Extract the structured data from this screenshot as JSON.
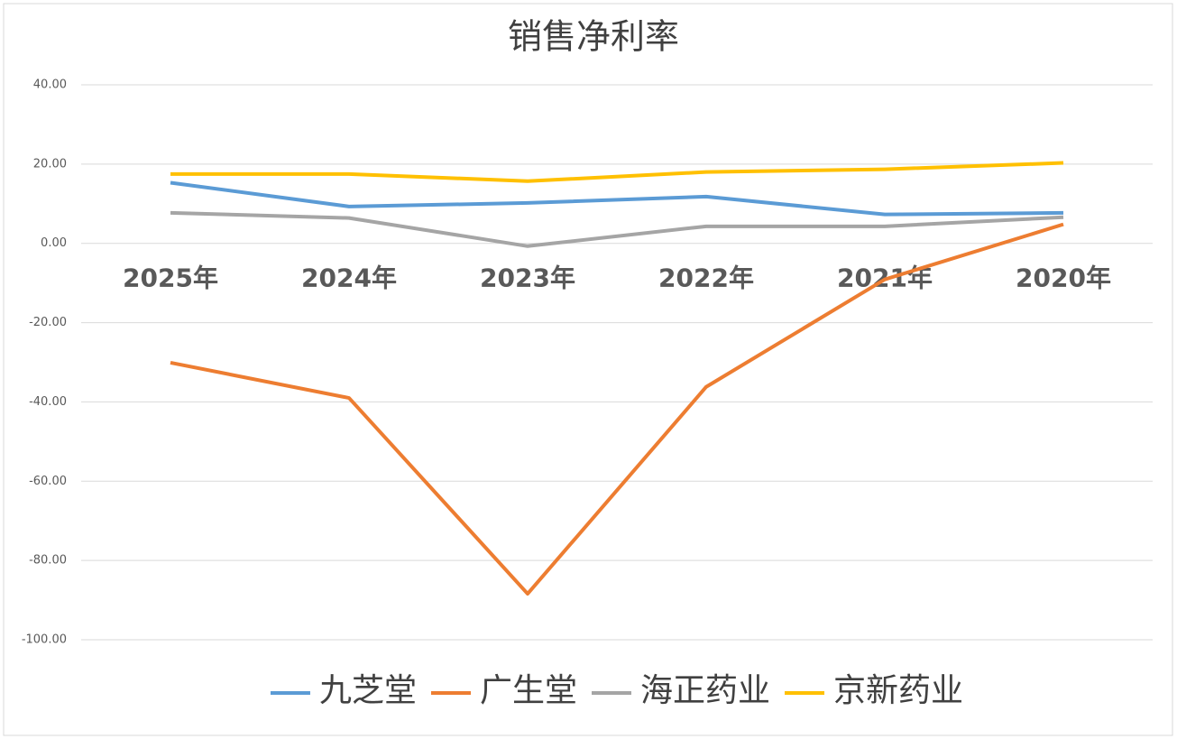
{
  "chart_data": {
    "type": "line",
    "title": "销售净利率",
    "categories": [
      "2025年",
      "2024年",
      "2023年",
      "2022年",
      "2021年",
      "2020年"
    ],
    "series": [
      {
        "name": "九芝堂",
        "color": "#5b9bd5",
        "values": [
          15.3,
          9.3,
          10.2,
          11.8,
          7.3,
          7.7
        ]
      },
      {
        "name": "广生堂",
        "color": "#ed7d31",
        "values": [
          -30.1,
          -39.0,
          -88.4,
          -36.2,
          -9.1,
          4.8
        ]
      },
      {
        "name": "海正药业",
        "color": "#a5a5a5",
        "values": [
          7.7,
          6.4,
          -0.7,
          4.3,
          4.3,
          6.6
        ]
      },
      {
        "name": "京新药业",
        "color": "#ffc000",
        "values": [
          17.5,
          17.5,
          15.7,
          18.0,
          18.7,
          20.3
        ]
      }
    ],
    "ylim": [
      -100,
      40
    ],
    "yticks": [
      {
        "value": 40,
        "label": "40.00"
      },
      {
        "value": 20,
        "label": "20.00"
      },
      {
        "value": 0,
        "label": "0.00"
      },
      {
        "value": -20,
        "label": "-20.00"
      },
      {
        "value": -40,
        "label": "-40.00"
      },
      {
        "value": -60,
        "label": "-60.00"
      },
      {
        "value": -80,
        "label": "-80.00"
      },
      {
        "value": -100,
        "label": "-100.00"
      }
    ],
    "grid": true,
    "legend": "bottom"
  }
}
